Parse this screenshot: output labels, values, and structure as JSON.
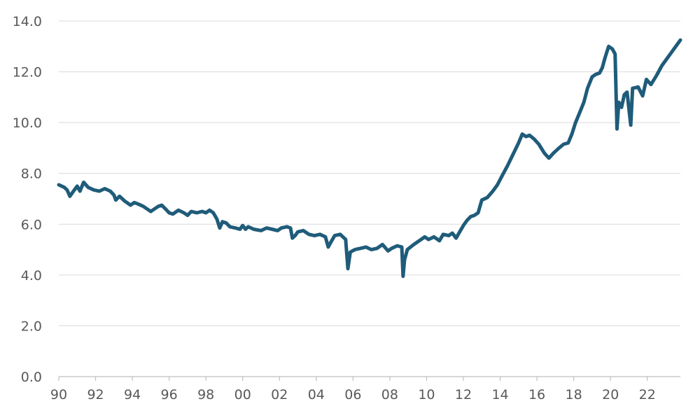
{
  "chart_data": {
    "type": "line",
    "title": "",
    "xlabel": "",
    "ylabel": "",
    "xlim": [
      1990,
      2023.8
    ],
    "ylim": [
      0,
      14
    ],
    "grid": true,
    "legend": "none",
    "x_ticks": [
      {
        "value": 1990,
        "label": "90"
      },
      {
        "value": 1992,
        "label": "92"
      },
      {
        "value": 1994,
        "label": "94"
      },
      {
        "value": 1996,
        "label": "96"
      },
      {
        "value": 1998,
        "label": "98"
      },
      {
        "value": 2000,
        "label": "00"
      },
      {
        "value": 2002,
        "label": "02"
      },
      {
        "value": 2004,
        "label": "04"
      },
      {
        "value": 2006,
        "label": "06"
      },
      {
        "value": 2008,
        "label": "08"
      },
      {
        "value": 2010,
        "label": "10"
      },
      {
        "value": 2012,
        "label": "12"
      },
      {
        "value": 2014,
        "label": "14"
      },
      {
        "value": 2016,
        "label": "16"
      },
      {
        "value": 2018,
        "label": "18"
      },
      {
        "value": 2020,
        "label": "20"
      },
      {
        "value": 2022,
        "label": "22"
      }
    ],
    "y_ticks": [
      {
        "value": 0,
        "label": "0.0"
      },
      {
        "value": 2,
        "label": "2.0"
      },
      {
        "value": 4,
        "label": "4.0"
      },
      {
        "value": 6,
        "label": "6.0"
      },
      {
        "value": 8,
        "label": "8.0"
      },
      {
        "value": 10,
        "label": "10.0"
      },
      {
        "value": 12,
        "label": "12.0"
      },
      {
        "value": 14,
        "label": "14.0"
      }
    ],
    "series": [
      {
        "color": "#1f5c7a",
        "points": [
          [
            1990.0,
            7.55
          ],
          [
            1990.3,
            7.45
          ],
          [
            1990.45,
            7.35
          ],
          [
            1990.6,
            7.1
          ],
          [
            1990.8,
            7.3
          ],
          [
            1991.0,
            7.5
          ],
          [
            1991.15,
            7.3
          ],
          [
            1991.35,
            7.65
          ],
          [
            1991.6,
            7.45
          ],
          [
            1991.9,
            7.35
          ],
          [
            1992.2,
            7.3
          ],
          [
            1992.5,
            7.4
          ],
          [
            1992.8,
            7.3
          ],
          [
            1993.0,
            7.15
          ],
          [
            1993.1,
            6.95
          ],
          [
            1993.3,
            7.1
          ],
          [
            1993.6,
            6.9
          ],
          [
            1993.9,
            6.75
          ],
          [
            1994.1,
            6.85
          ],
          [
            1994.3,
            6.8
          ],
          [
            1994.6,
            6.7
          ],
          [
            1994.8,
            6.6
          ],
          [
            1995.0,
            6.5
          ],
          [
            1995.2,
            6.6
          ],
          [
            1995.4,
            6.7
          ],
          [
            1995.6,
            6.75
          ],
          [
            1995.8,
            6.6
          ],
          [
            1996.0,
            6.45
          ],
          [
            1996.2,
            6.4
          ],
          [
            1996.5,
            6.55
          ],
          [
            1996.8,
            6.45
          ],
          [
            1997.0,
            6.35
          ],
          [
            1997.2,
            6.5
          ],
          [
            1997.5,
            6.45
          ],
          [
            1997.8,
            6.5
          ],
          [
            1998.0,
            6.45
          ],
          [
            1998.2,
            6.55
          ],
          [
            1998.4,
            6.45
          ],
          [
            1998.6,
            6.2
          ],
          [
            1998.75,
            5.85
          ],
          [
            1998.9,
            6.1
          ],
          [
            1999.1,
            6.05
          ],
          [
            1999.3,
            5.9
          ],
          [
            1999.6,
            5.85
          ],
          [
            1999.85,
            5.8
          ],
          [
            2000.0,
            5.95
          ],
          [
            2000.15,
            5.8
          ],
          [
            2000.3,
            5.9
          ],
          [
            2000.6,
            5.8
          ],
          [
            2001.0,
            5.75
          ],
          [
            2001.3,
            5.85
          ],
          [
            2001.6,
            5.8
          ],
          [
            2001.9,
            5.75
          ],
          [
            2002.1,
            5.85
          ],
          [
            2002.4,
            5.9
          ],
          [
            2002.6,
            5.85
          ],
          [
            2002.7,
            5.45
          ],
          [
            2002.85,
            5.55
          ],
          [
            2003.0,
            5.7
          ],
          [
            2003.3,
            5.75
          ],
          [
            2003.6,
            5.6
          ],
          [
            2003.9,
            5.55
          ],
          [
            2004.2,
            5.6
          ],
          [
            2004.5,
            5.5
          ],
          [
            2004.65,
            5.1
          ],
          [
            2004.8,
            5.3
          ],
          [
            2005.0,
            5.55
          ],
          [
            2005.3,
            5.6
          ],
          [
            2005.6,
            5.4
          ],
          [
            2005.72,
            4.25
          ],
          [
            2005.85,
            4.9
          ],
          [
            2006.1,
            5.0
          ],
          [
            2006.4,
            5.05
          ],
          [
            2006.7,
            5.1
          ],
          [
            2007.0,
            5.0
          ],
          [
            2007.3,
            5.05
          ],
          [
            2007.6,
            5.2
          ],
          [
            2007.9,
            4.95
          ],
          [
            2008.1,
            5.05
          ],
          [
            2008.4,
            5.15
          ],
          [
            2008.65,
            5.1
          ],
          [
            2008.72,
            3.95
          ],
          [
            2008.8,
            4.6
          ],
          [
            2008.95,
            5.0
          ],
          [
            2009.3,
            5.2
          ],
          [
            2009.6,
            5.35
          ],
          [
            2009.9,
            5.5
          ],
          [
            2010.1,
            5.4
          ],
          [
            2010.4,
            5.5
          ],
          [
            2010.7,
            5.35
          ],
          [
            2010.9,
            5.6
          ],
          [
            2011.2,
            5.55
          ],
          [
            2011.4,
            5.65
          ],
          [
            2011.6,
            5.45
          ],
          [
            2011.8,
            5.7
          ],
          [
            2012.0,
            5.95
          ],
          [
            2012.2,
            6.15
          ],
          [
            2012.4,
            6.3
          ],
          [
            2012.6,
            6.35
          ],
          [
            2012.8,
            6.45
          ],
          [
            2013.0,
            6.95
          ],
          [
            2013.3,
            7.05
          ],
          [
            2013.6,
            7.3
          ],
          [
            2013.85,
            7.55
          ],
          [
            2014.1,
            7.9
          ],
          [
            2014.4,
            8.3
          ],
          [
            2014.7,
            8.75
          ],
          [
            2015.0,
            9.2
          ],
          [
            2015.2,
            9.55
          ],
          [
            2015.4,
            9.45
          ],
          [
            2015.6,
            9.5
          ],
          [
            2015.85,
            9.35
          ],
          [
            2016.1,
            9.15
          ],
          [
            2016.4,
            8.8
          ],
          [
            2016.65,
            8.6
          ],
          [
            2016.9,
            8.8
          ],
          [
            2017.2,
            9.0
          ],
          [
            2017.45,
            9.15
          ],
          [
            2017.7,
            9.2
          ],
          [
            2017.9,
            9.55
          ],
          [
            2018.1,
            10.0
          ],
          [
            2018.3,
            10.35
          ],
          [
            2018.55,
            10.8
          ],
          [
            2018.75,
            11.35
          ],
          [
            2019.0,
            11.8
          ],
          [
            2019.2,
            11.9
          ],
          [
            2019.4,
            11.95
          ],
          [
            2019.55,
            12.15
          ],
          [
            2019.7,
            12.55
          ],
          [
            2019.9,
            13.0
          ],
          [
            2020.1,
            12.9
          ],
          [
            2020.25,
            12.7
          ],
          [
            2020.35,
            9.75
          ],
          [
            2020.45,
            10.8
          ],
          [
            2020.6,
            10.6
          ],
          [
            2020.75,
            11.1
          ],
          [
            2020.9,
            11.2
          ],
          [
            2021.1,
            9.9
          ],
          [
            2021.2,
            11.35
          ],
          [
            2021.5,
            11.4
          ],
          [
            2021.75,
            11.05
          ],
          [
            2021.95,
            11.7
          ],
          [
            2022.2,
            11.5
          ],
          [
            2022.5,
            11.85
          ],
          [
            2022.8,
            12.25
          ],
          [
            2023.1,
            12.55
          ],
          [
            2023.4,
            12.85
          ],
          [
            2023.6,
            13.05
          ],
          [
            2023.8,
            13.25
          ]
        ]
      }
    ]
  }
}
